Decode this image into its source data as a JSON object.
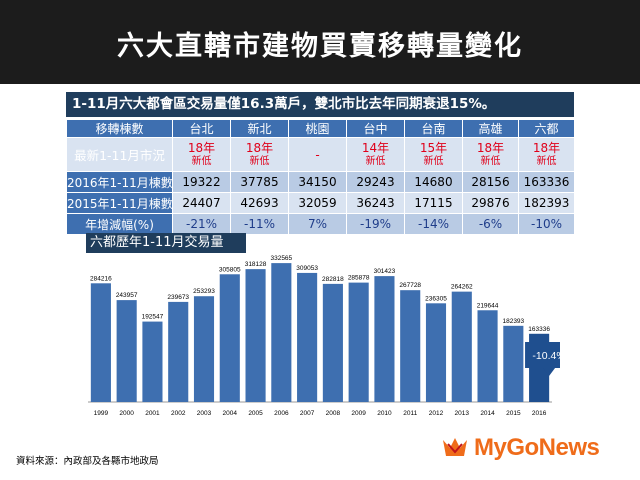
{
  "header": {
    "title": "六大直轄市建物買賣移轉量變化"
  },
  "headline": "1-11月六大都會區交易量僅16.3萬戶，雙北市比去年同期衰退15%。",
  "table": {
    "corner": "移轉棟數",
    "cities": [
      "台北",
      "新北",
      "桃園",
      "台中",
      "台南",
      "高雄",
      "六都"
    ],
    "latest": {
      "label": "最新1-11月市況",
      "cells": [
        {
          "main": "18年",
          "sub": "新低"
        },
        {
          "main": "18年",
          "sub": "新低"
        },
        {
          "main": "-",
          "sub": ""
        },
        {
          "main": "14年",
          "sub": "新低"
        },
        {
          "main": "15年",
          "sub": "新低"
        },
        {
          "main": "18年",
          "sub": "新低"
        },
        {
          "main": "18年",
          "sub": "新低"
        }
      ]
    },
    "rows": [
      {
        "label": "2016年1-11月棟數",
        "values": [
          "19322",
          "37785",
          "34150",
          "29243",
          "14680",
          "28156",
          "163336"
        ]
      },
      {
        "label": "2015年1-11月棟數",
        "values": [
          "24407",
          "42693",
          "32059",
          "36243",
          "17115",
          "29876",
          "182393"
        ]
      },
      {
        "label": "年增減幅(%)",
        "values": [
          "-21%",
          "-11%",
          "7%",
          "-19%",
          "-14%",
          "-6%",
          "-10%"
        ]
      }
    ]
  },
  "chart_data": {
    "type": "bar",
    "title": "六都歷年1-11月交易量",
    "categories": [
      "1999",
      "2000",
      "2001",
      "2002",
      "2003",
      "2004",
      "2005",
      "2006",
      "2007",
      "2008",
      "2009",
      "2010",
      "2011",
      "2012",
      "2013",
      "2014",
      "2015",
      "2016"
    ],
    "values": [
      284216,
      243957,
      192547,
      239673,
      253293,
      305805,
      318128,
      332565,
      309053,
      282818,
      285878,
      301423,
      267728,
      236305,
      264262,
      219644,
      182393,
      163336
    ],
    "ylim": [
      0,
      340000
    ],
    "annotation": "-10.4%",
    "colors": {
      "bar": "#3e6fb0",
      "bar_last": "#1f4f8f",
      "callout": "#1f4f8f"
    }
  },
  "footer": {
    "source": "資料來源：內政部及各縣市地政局",
    "logo": "MyGoNews",
    "logo_mark": "GIO"
  }
}
